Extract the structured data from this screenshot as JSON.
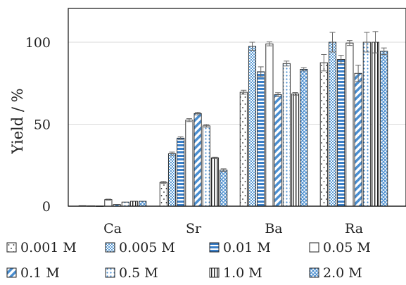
{
  "chart_data": {
    "type": "bar",
    "title": "",
    "xlabel": "",
    "ylabel": "Yield / %",
    "ylim": [
      0,
      120
    ],
    "yticks": [
      0,
      50,
      100
    ],
    "grid": "horizontal",
    "legend_position": "bottom",
    "categories": [
      "Ca",
      "Sr",
      "Ba",
      "Ra"
    ],
    "series": [
      {
        "name": "0.001 M",
        "pattern": "dots-sparse",
        "values": [
          0.3,
          14.5,
          69.5,
          87.5
        ],
        "errors": [
          0.2,
          0.6,
          1.2,
          5.0
        ]
      },
      {
        "name": "0.005 M",
        "pattern": "checker",
        "values": [
          0.2,
          32.0,
          97.5,
          100.0
        ],
        "errors": [
          0.1,
          1.0,
          2.5,
          6.0
        ]
      },
      {
        "name": "0.01 M",
        "pattern": "hbar-blue",
        "values": [
          0.1,
          41.5,
          82.0,
          89.5
        ],
        "errors": [
          0.1,
          0.8,
          3.0,
          2.5
        ]
      },
      {
        "name": "0.05 M",
        "pattern": "open",
        "values": [
          4.0,
          52.5,
          99.0,
          99.5
        ],
        "errors": [
          0.3,
          0.9,
          1.2,
          1.5
        ]
      },
      {
        "name": "0.1 M",
        "pattern": "diag-blue",
        "values": [
          1.0,
          56.5,
          68.0,
          81.0
        ],
        "errors": [
          0.2,
          0.8,
          1.2,
          5.0
        ]
      },
      {
        "name": "0.5 M",
        "pattern": "dots-blue",
        "values": [
          2.5,
          49.0,
          87.0,
          100.0
        ],
        "errors": [
          0.2,
          0.8,
          1.5,
          6.0
        ]
      },
      {
        "name": "1.0 M",
        "pattern": "vbar",
        "values": [
          3.0,
          29.5,
          68.5,
          100.0
        ],
        "errors": [
          0.2,
          0.4,
          0.8,
          6.5
        ]
      },
      {
        "name": "2.0 M",
        "pattern": "diamond-blue",
        "values": [
          3.0,
          22.0,
          83.5,
          94.5
        ],
        "errors": [
          0.2,
          0.8,
          1.0,
          2.0
        ]
      }
    ]
  }
}
